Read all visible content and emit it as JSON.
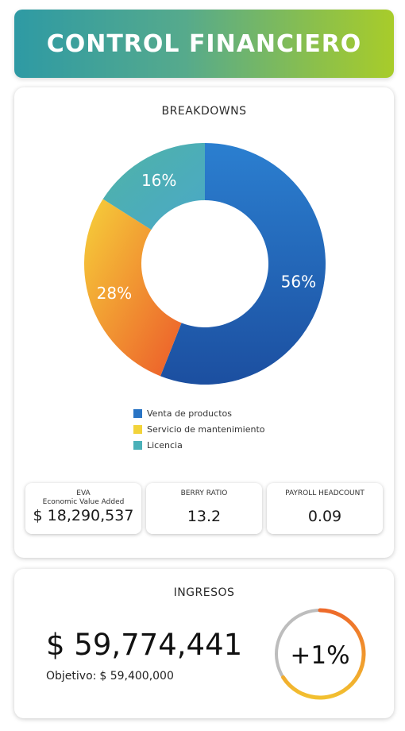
{
  "header": {
    "title": "CONTROL FINANCIERO"
  },
  "breakdowns": {
    "title": "BREAKDOWNS",
    "kpis": [
      {
        "label": "EVA",
        "sublabel": "Economic Value Added",
        "value": "$ 18,290,537"
      },
      {
        "label": "BERRY RATIO",
        "sublabel": "",
        "value": "13.2"
      },
      {
        "label": "PAYROLL HEADCOUNT",
        "sublabel": "",
        "value": "0.09"
      }
    ]
  },
  "chart_data": {
    "type": "pie",
    "title": "BREAKDOWNS",
    "donut": true,
    "categories": [
      "Venta de productos",
      "Servicio de mantenimiento",
      "Licencia"
    ],
    "values": [
      56,
      28,
      16
    ],
    "value_labels": [
      "56%",
      "28%",
      "16%"
    ],
    "colors": [
      "#2a74c4",
      "#f2b134",
      "#4ab0b8"
    ],
    "legend_position": "bottom"
  },
  "ingresos": {
    "title": "INGRESOS",
    "value": "$ 59,774,441",
    "target_label": "Objetivo:",
    "target_value": "$ 59,400,000",
    "ring_label": "+1%",
    "ring_progress": 0.66,
    "ring_color": "#ee7a2c",
    "ring_track_color": "#bdbdbd"
  }
}
